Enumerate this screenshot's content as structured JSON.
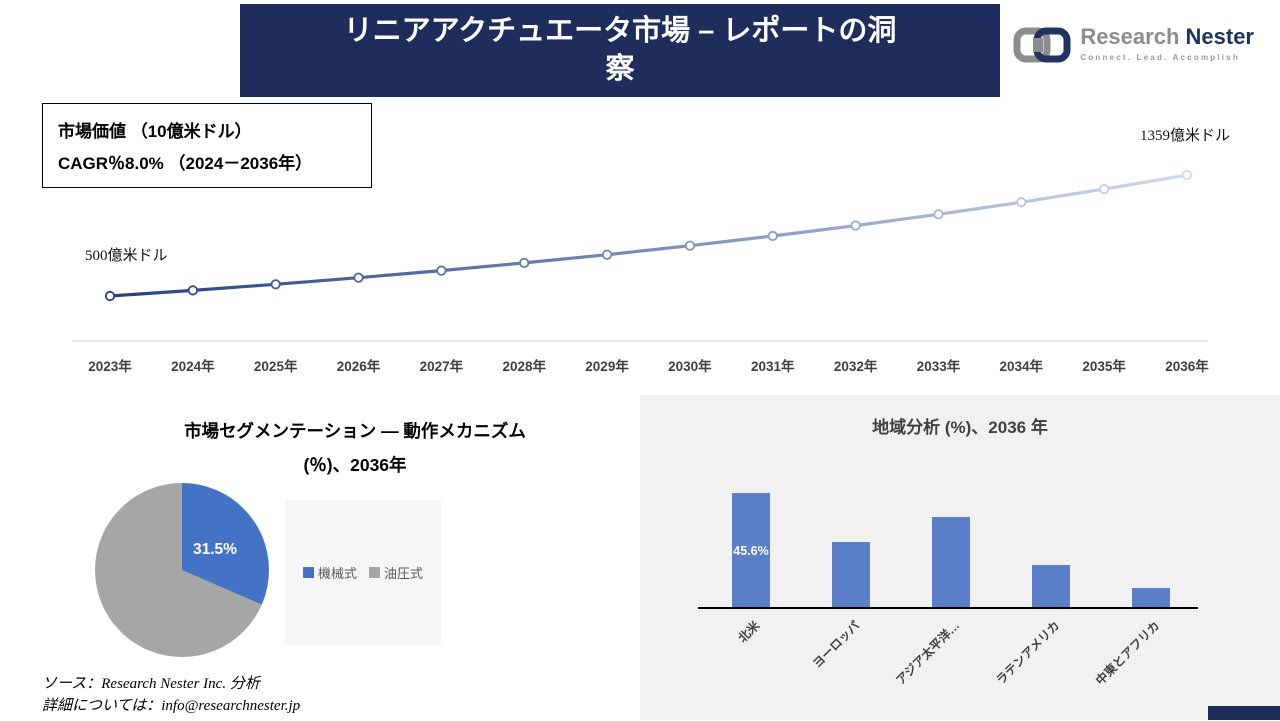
{
  "header": {
    "title": "リニアアクチュエータ市場 – レポートの洞察"
  },
  "logo": {
    "brand_gray": "Research",
    "brand_dark": "Nester",
    "tagline": "Connect. Lead. Accomplish"
  },
  "info_box": {
    "line1": "市場価値 （10億米ドル）",
    "line2": "CAGR％8.0% （2024－2036年）"
  },
  "chart_data": [
    {
      "type": "line",
      "title": "市場価値（10億米ドル） 2023-2036",
      "x": [
        "2023年",
        "2024年",
        "2025年",
        "2026年",
        "2027年",
        "2028年",
        "2029年",
        "2030年",
        "2031年",
        "2032年",
        "2033年",
        "2034年",
        "2035年",
        "2036年"
      ],
      "values": [
        500,
        540,
        583,
        630,
        680,
        735,
        793,
        857,
        926,
        1000,
        1080,
        1166,
        1259,
        1359
      ],
      "start_label": "500億米ドル",
      "end_label": "1359億米ドル",
      "ylim": [
        450,
        1450
      ],
      "grid": false,
      "line_color_start": "#26417e",
      "line_color_end": "#cfd9f0",
      "marker": "white-circle"
    },
    {
      "type": "pie",
      "title_line1": "市場セグメンテーション ― 動作メカニズム",
      "title_line2": "(％)、2036年",
      "labels": [
        "機械式",
        "油圧式"
      ],
      "values": [
        31.5,
        68.5
      ],
      "colors": [
        "#4472c4",
        "#a6a6a6"
      ],
      "data_label": "31.5%",
      "legend_position": "right"
    },
    {
      "type": "bar",
      "title": "地域分析 (%)、2036 年",
      "categories": [
        "北米",
        "ヨーロッパ",
        "アジア太平洋…",
        "ラテンアメリカ",
        "中東とアフリカ"
      ],
      "values": [
        45.6,
        26,
        36,
        17,
        8
      ],
      "ylim": [
        0,
        50
      ],
      "bar_color": "#5b7ec8",
      "data_label": "45.6%",
      "data_label_index": 0
    }
  ],
  "footer": {
    "source": "ソース：Research Nester Inc. 分析",
    "details": "詳細については：info@researchnester.jp"
  },
  "colors": {
    "header_bg": "#1e2d5c",
    "panel_gray": "#f1f1f1",
    "axis_gray": "#d9d9d9"
  }
}
